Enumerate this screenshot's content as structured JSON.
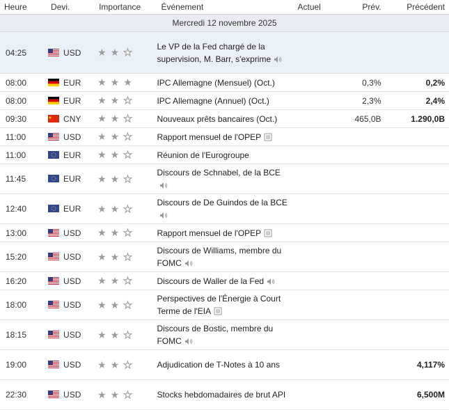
{
  "headers": {
    "time": "Heure",
    "currency": "Devi.",
    "importance": "Importance",
    "event": "Événement",
    "actual": "Actuel",
    "forecast": "Prév.",
    "previous": "Précédent"
  },
  "date_label": "Mercredi 12 novembre 2025",
  "rows": [
    {
      "time": "04:25",
      "flag": "us",
      "currency": "USD",
      "stars": 2,
      "event": "Le VP de la Fed chargé de la supervision, M. Barr, s'exprime",
      "icon": "speaker-icon",
      "actual": "",
      "forecast": "",
      "previous": "",
      "highlight": true,
      "h": 60
    },
    {
      "time": "08:00",
      "flag": "de",
      "currency": "EUR",
      "stars": 3,
      "event": "IPC Allemagne (Mensuel) (Oct.)",
      "icon": "",
      "actual": "",
      "forecast": "0,3%",
      "previous": "0,2%",
      "h": 26
    },
    {
      "time": "08:00",
      "flag": "de",
      "currency": "EUR",
      "stars": 2,
      "event": "IPC Allemagne (Annuel) (Oct.)",
      "icon": "",
      "actual": "",
      "forecast": "2,3%",
      "previous": "2,4%",
      "h": 26
    },
    {
      "time": "09:30",
      "flag": "cn",
      "currency": "CNY",
      "stars": 2,
      "event": "Nouveaux prêts bancaires (Oct.)",
      "icon": "",
      "actual": "",
      "forecast": "465,0B",
      "previous": "1.290,0B",
      "h": 26
    },
    {
      "time": "11:00",
      "flag": "us",
      "currency": "USD",
      "stars": 2,
      "event": "Rapport mensuel de l'OPEP",
      "icon": "doc-icon",
      "actual": "",
      "forecast": "",
      "previous": "",
      "h": 26
    },
    {
      "time": "11:00",
      "flag": "eu",
      "currency": "EUR",
      "stars": 2,
      "event": "Réunion de l'Eurogroupe",
      "icon": "",
      "actual": "",
      "forecast": "",
      "previous": "",
      "h": 26
    },
    {
      "time": "11:45",
      "flag": "eu",
      "currency": "EUR",
      "stars": 2,
      "event": "Discours de Schnabel, de la BCE",
      "icon": "speaker-icon",
      "actual": "",
      "forecast": "",
      "previous": "",
      "h": 43
    },
    {
      "time": "12:40",
      "flag": "eu",
      "currency": "EUR",
      "stars": 2,
      "event": "Discours de De Guindos de la BCE",
      "icon": "speaker-icon",
      "actual": "",
      "forecast": "",
      "previous": "",
      "h": 43
    },
    {
      "time": "13:00",
      "flag": "us",
      "currency": "USD",
      "stars": 2,
      "event": "Rapport mensuel de l'OPEP",
      "icon": "doc-icon",
      "actual": "",
      "forecast": "",
      "previous": "",
      "h": 26
    },
    {
      "time": "15:20",
      "flag": "us",
      "currency": "USD",
      "stars": 2,
      "event": "Discours de Williams, membre du FOMC",
      "icon": "speaker-icon",
      "actual": "",
      "forecast": "",
      "previous": "",
      "h": 43
    },
    {
      "time": "16:20",
      "flag": "us",
      "currency": "USD",
      "stars": 2,
      "event": "Discours de Waller de la Fed",
      "icon": "speaker-icon",
      "actual": "",
      "forecast": "",
      "previous": "",
      "h": 26
    },
    {
      "time": "18:00",
      "flag": "us",
      "currency": "USD",
      "stars": 2,
      "event": "Perspectives de l'Énergie à Court Terme de l'EIA",
      "icon": "doc-icon",
      "actual": "",
      "forecast": "",
      "previous": "",
      "h": 43
    },
    {
      "time": "18:15",
      "flag": "us",
      "currency": "USD",
      "stars": 2,
      "event": "Discours de Bostic, membre du FOMC",
      "icon": "speaker-icon",
      "actual": "",
      "forecast": "",
      "previous": "",
      "h": 43
    },
    {
      "time": "19:00",
      "flag": "us",
      "currency": "USD",
      "stars": 2,
      "event": "Adjudication de T-Notes à 10 ans",
      "icon": "",
      "actual": "",
      "forecast": "",
      "previous": "4,117%",
      "h": 43
    },
    {
      "time": "22:30",
      "flag": "us",
      "currency": "USD",
      "stars": 2,
      "event": "Stocks hebdomadaires de brut API",
      "icon": "",
      "actual": "",
      "forecast": "",
      "previous": "6,500M",
      "h": 43
    }
  ],
  "colors": {
    "highlight": "#eaf0f8",
    "date_band": "#e8ecf2",
    "star": "#9b9b9b"
  }
}
